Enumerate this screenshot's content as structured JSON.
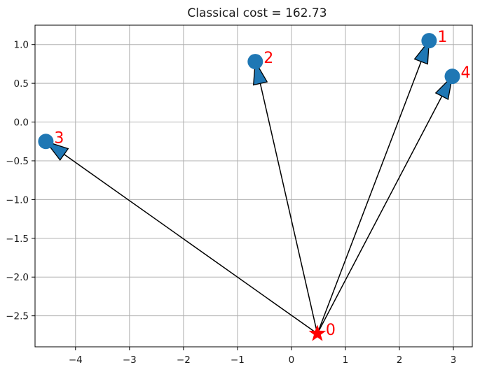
{
  "chart_data": {
    "type": "scatter",
    "title": "Classical cost = 162.73",
    "xlabel": "",
    "ylabel": "",
    "xlim": [
      -4.75,
      3.35
    ],
    "ylim": [
      -2.9,
      1.25
    ],
    "grid": true,
    "x_ticks": [
      -4,
      -3,
      -2,
      -1,
      0,
      1,
      2,
      3
    ],
    "y_ticks": [
      1.0,
      0.5,
      0.0,
      -0.5,
      -1.0,
      -1.5,
      -2.0,
      -2.5
    ],
    "x_tick_labels": [
      "−4",
      "−3",
      "−2",
      "−1",
      "0",
      "1",
      "2",
      "3"
    ],
    "y_tick_labels": [
      "1.0",
      "0.5",
      "0.0",
      "−0.5",
      "−1.0",
      "−1.5",
      "−2.0",
      "−2.5"
    ],
    "point_color": "#1f77b4",
    "depot_color": "#ff0000",
    "label_color": "#ff0000",
    "arrow_color": "#000000",
    "depot": {
      "label": "0",
      "x": 0.48,
      "y": -2.73
    },
    "points": [
      {
        "label": "1",
        "x": 2.55,
        "y": 1.05
      },
      {
        "label": "2",
        "x": -0.67,
        "y": 0.78
      },
      {
        "label": "3",
        "x": -4.55,
        "y": -0.25
      },
      {
        "label": "4",
        "x": 2.98,
        "y": 0.59
      }
    ],
    "arrows": [
      {
        "from": "0",
        "to": "1"
      },
      {
        "from": "0",
        "to": "2"
      },
      {
        "from": "0",
        "to": "3"
      },
      {
        "from": "0",
        "to": "4"
      }
    ]
  }
}
